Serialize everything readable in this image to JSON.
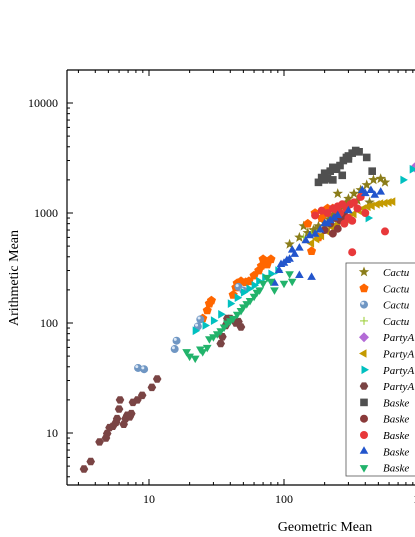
{
  "chart_data": {
    "type": "scatter",
    "title": "",
    "xlabel": "Geometric Mean",
    "ylabel": "Arithmetic Mean",
    "xscale": "log",
    "yscale": "log",
    "xlim": [
      2.6,
      1000
    ],
    "ylim": [
      3.3,
      20000
    ],
    "grid": false,
    "legend_position": "right (partially cut off)",
    "x_tick_labels": [
      "10",
      "100",
      "10"
    ],
    "y_tick_labels": [
      "10",
      "100",
      "1000",
      "10000"
    ],
    "series": [
      {
        "name": "Cactu",
        "marker": "star",
        "color": "#8b7d1a",
        "points": [
          [
            110,
            520
          ],
          [
            130,
            600
          ],
          [
            150,
            660
          ],
          [
            165,
            700
          ],
          [
            180,
            760
          ],
          [
            200,
            820
          ],
          [
            215,
            880
          ],
          [
            230,
            960
          ],
          [
            245,
            1020
          ],
          [
            260,
            1090
          ],
          [
            275,
            1150
          ],
          [
            290,
            1250
          ],
          [
            300,
            1350
          ],
          [
            330,
            1500
          ],
          [
            370,
            1620
          ],
          [
            410,
            1800
          ],
          [
            460,
            2000
          ],
          [
            520,
            2050
          ],
          [
            140,
            760
          ],
          [
            170,
            700
          ],
          [
            250,
            1500
          ],
          [
            350,
            1300
          ],
          [
            430,
            1250
          ],
          [
            560,
            1900
          ]
        ]
      },
      {
        "name": "Cactu",
        "marker": "pentagon",
        "color": "#ff6600",
        "points": [
          [
            25,
            110
          ],
          [
            27,
            130
          ],
          [
            28,
            150
          ],
          [
            29,
            160
          ],
          [
            42,
            180
          ],
          [
            44,
            210
          ],
          [
            45,
            230
          ],
          [
            48,
            240
          ],
          [
            52,
            235
          ],
          [
            55,
            240
          ],
          [
            60,
            270
          ],
          [
            65,
            300
          ],
          [
            68,
            330
          ],
          [
            70,
            380
          ],
          [
            75,
            340
          ],
          [
            80,
            380
          ],
          [
            160,
            450
          ],
          [
            180,
            600
          ],
          [
            190,
            900
          ],
          [
            200,
            1000
          ],
          [
            210,
            1100
          ],
          [
            170,
            1000
          ],
          [
            150,
            800
          ],
          [
            230,
            1100
          ]
        ]
      },
      {
        "name": "Cactu",
        "marker": "sphere",
        "color": "#6f96c3",
        "points": [
          [
            8.3,
            39
          ],
          [
            9.2,
            38
          ],
          [
            15.5,
            58
          ],
          [
            16,
            69
          ],
          [
            23,
            93
          ],
          [
            24,
            108
          ],
          [
            46,
            213
          ],
          [
            50,
            197
          ]
        ]
      },
      {
        "name": "Cactu",
        "marker": "plus",
        "color": "#9acd32",
        "points": [
          [
            140,
            600
          ],
          [
            160,
            650
          ],
          [
            185,
            700
          ],
          [
            205,
            750
          ],
          [
            220,
            800
          ],
          [
            240,
            850
          ],
          [
            260,
            900
          ],
          [
            280,
            950
          ]
        ]
      },
      {
        "name": "PartyA",
        "marker": "diamond",
        "color": "#b36bd6",
        "points": [
          [
            930,
            2600
          ],
          [
            980,
            2700
          ]
        ]
      },
      {
        "name": "PartyA",
        "marker": "triangle-left",
        "color": "#c49a00",
        "points": [
          [
            160,
            530
          ],
          [
            175,
            580
          ],
          [
            190,
            620
          ],
          [
            210,
            680
          ],
          [
            230,
            740
          ],
          [
            250,
            790
          ],
          [
            270,
            840
          ],
          [
            290,
            880
          ],
          [
            310,
            930
          ],
          [
            330,
            980
          ],
          [
            360,
            1050
          ],
          [
            390,
            1100
          ],
          [
            420,
            1140
          ],
          [
            450,
            1160
          ],
          [
            490,
            1200
          ],
          [
            520,
            1220
          ],
          [
            560,
            1230
          ],
          [
            600,
            1250
          ],
          [
            640,
            1270
          ]
        ]
      },
      {
        "name": "PartyA",
        "marker": "triangle-right",
        "color": "#00c0c0",
        "points": [
          [
            22,
            85
          ],
          [
            26,
            95
          ],
          [
            30,
            105
          ],
          [
            34,
            120
          ],
          [
            40,
            150
          ],
          [
            45,
            170
          ],
          [
            50,
            190
          ],
          [
            55,
            205
          ],
          [
            60,
            220
          ],
          [
            65,
            240
          ],
          [
            72,
            260
          ],
          [
            80,
            280
          ],
          [
            90,
            300
          ],
          [
            420,
            900
          ],
          [
            760,
            2000
          ],
          [
            890,
            2500
          ]
        ]
      },
      {
        "name": "PartyA",
        "marker": "hexagon",
        "color": "#7a4444",
        "points": [
          [
            3.3,
            4.7
          ],
          [
            3.7,
            5.5
          ],
          [
            4.3,
            8.3
          ],
          [
            4.8,
            9.0
          ],
          [
            4.9,
            9.9
          ],
          [
            5.1,
            11.2
          ],
          [
            5.4,
            11.5
          ],
          [
            5.7,
            12.5
          ],
          [
            5.8,
            13.5
          ],
          [
            6.0,
            16.5
          ],
          [
            6.1,
            20.0
          ],
          [
            6.5,
            12.0
          ],
          [
            6.7,
            13.5
          ],
          [
            6.9,
            14.5
          ],
          [
            7.2,
            14.0
          ],
          [
            7.4,
            15.0
          ],
          [
            7.6,
            19.0
          ],
          [
            8.2,
            20.0
          ],
          [
            8.9,
            22.0
          ],
          [
            10.5,
            26.0
          ],
          [
            11.5,
            31.0
          ],
          [
            34,
            65
          ],
          [
            35,
            75
          ],
          [
            37,
            95
          ],
          [
            40,
            110
          ],
          [
            44,
            100
          ],
          [
            48,
            92
          ],
          [
            46,
            103
          ],
          [
            38,
            110
          ]
        ]
      },
      {
        "name": "Baske",
        "marker": "square",
        "color": "#505050",
        "points": [
          [
            180,
            1900
          ],
          [
            190,
            2100
          ],
          [
            200,
            2300
          ],
          [
            210,
            2050
          ],
          [
            220,
            2400
          ],
          [
            230,
            2600
          ],
          [
            245,
            2500
          ],
          [
            260,
            2700
          ],
          [
            275,
            3000
          ],
          [
            290,
            3200
          ],
          [
            300,
            3300
          ],
          [
            320,
            3500
          ],
          [
            340,
            3700
          ],
          [
            360,
            3600
          ],
          [
            410,
            3200
          ],
          [
            450,
            2400
          ],
          [
            230,
            2000
          ],
          [
            270,
            2200
          ],
          [
            200,
            2000
          ],
          [
            300,
            3100
          ]
        ]
      },
      {
        "name": "Baske",
        "marker": "circle-brown",
        "color": "#8a3a3a",
        "points": [
          [
            200,
            700
          ],
          [
            220,
            800
          ],
          [
            240,
            900
          ],
          [
            260,
            860
          ],
          [
            280,
            950
          ],
          [
            250,
            720
          ],
          [
            230,
            650
          ]
        ]
      },
      {
        "name": "Baske",
        "marker": "circle",
        "color": "#e8383a",
        "points": [
          [
            170,
            950
          ],
          [
            190,
            1050
          ],
          [
            210,
            1000
          ],
          [
            230,
            1100
          ],
          [
            250,
            1150
          ],
          [
            270,
            1200
          ],
          [
            290,
            1100
          ],
          [
            310,
            1200
          ],
          [
            330,
            1250
          ],
          [
            350,
            1100
          ],
          [
            280,
            800
          ],
          [
            300,
            900
          ],
          [
            320,
            850
          ],
          [
            260,
            1000
          ],
          [
            240,
            1080
          ],
          [
            370,
            1400
          ],
          [
            320,
            440
          ],
          [
            560,
            680
          ],
          [
            400,
            1000
          ]
        ]
      },
      {
        "name": "Baske",
        "marker": "triangle-up",
        "color": "#2255cc",
        "points": [
          [
            92,
            300
          ],
          [
            95,
            340
          ],
          [
            100,
            350
          ],
          [
            105,
            370
          ],
          [
            110,
            380
          ],
          [
            120,
            420
          ],
          [
            130,
            480
          ],
          [
            145,
            560
          ],
          [
            155,
            620
          ],
          [
            170,
            640
          ],
          [
            185,
            700
          ],
          [
            200,
            800
          ],
          [
            160,
            260
          ],
          [
            210,
            800
          ],
          [
            220,
            850
          ],
          [
            235,
            900
          ],
          [
            250,
            950
          ],
          [
            300,
            1050
          ],
          [
            380,
            1600
          ],
          [
            400,
            1500
          ],
          [
            440,
            1600
          ],
          [
            470,
            1450
          ],
          [
            520,
            1550
          ],
          [
            130,
            270
          ],
          [
            85,
            230
          ],
          [
            115,
            460
          ]
        ]
      },
      {
        "name": "Baske",
        "marker": "triangle-down",
        "color": "#22b36b",
        "points": [
          [
            19,
            55
          ],
          [
            20,
            50
          ],
          [
            22,
            48
          ],
          [
            24,
            58
          ],
          [
            25,
            55
          ],
          [
            27,
            60
          ],
          [
            28,
            72
          ],
          [
            30,
            75
          ],
          [
            32,
            80
          ],
          [
            34,
            85
          ],
          [
            36,
            92
          ],
          [
            38,
            100
          ],
          [
            40,
            105
          ],
          [
            42,
            110
          ],
          [
            45,
            120
          ],
          [
            48,
            130
          ],
          [
            50,
            140
          ],
          [
            53,
            150
          ],
          [
            56,
            160
          ],
          [
            60,
            175
          ],
          [
            63,
            190
          ],
          [
            66,
            200
          ],
          [
            70,
            230
          ],
          [
            75,
            260
          ],
          [
            80,
            240
          ],
          [
            85,
            200
          ],
          [
            100,
            230
          ],
          [
            110,
            280
          ],
          [
            115,
            240
          ]
        ]
      }
    ]
  }
}
